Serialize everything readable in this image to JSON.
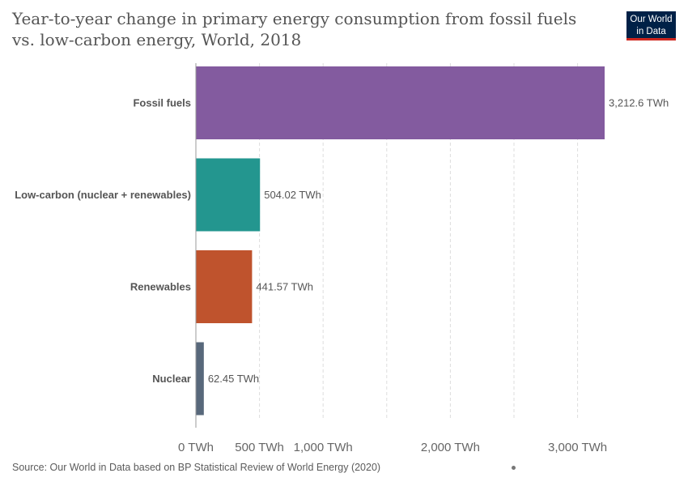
{
  "chart_data": {
    "type": "bar",
    "orientation": "horizontal",
    "title": "Year-to-year change in primary energy consumption from fossil fuels vs. low-carbon energy, World, 2018",
    "categories": [
      "Fossil fuels",
      "Low-carbon (nuclear + renewables)",
      "Renewables",
      "Nuclear"
    ],
    "values": [
      3212.6,
      504.02,
      441.57,
      62.45
    ],
    "value_labels": [
      "3,212.6 TWh",
      "504.02 TWh",
      "441.57 TWh",
      "62.45 TWh"
    ],
    "colors": [
      "#835b9f",
      "#23968f",
      "#bf532d",
      "#58687b"
    ],
    "xlim": [
      0,
      3212.6
    ],
    "xticks": [
      0,
      500,
      1000,
      2000,
      3000
    ],
    "xtick_labels": [
      "0 TWh",
      "500 TWh",
      "1,000 TWh",
      "2,000 TWh",
      "3,000 TWh"
    ],
    "gridlines": [
      500,
      1000,
      1500,
      2000,
      2500,
      3000
    ],
    "grid": true,
    "xlabel": "",
    "ylabel": ""
  },
  "logo": {
    "line1": "Our World",
    "line2": "in Data"
  },
  "source": "Source: Our World in Data based on BP Statistical Review of World Energy (2020)"
}
